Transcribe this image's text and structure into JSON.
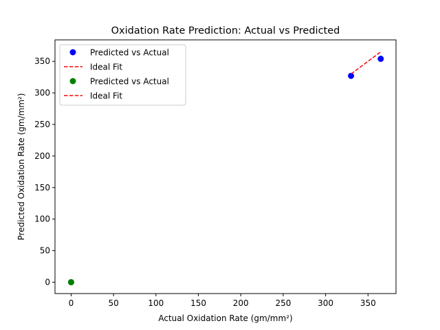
{
  "chart_data": {
    "type": "scatter",
    "title": "Oxidation Rate Prediction: Actual vs Predicted",
    "xlabel": "Actual Oxidation Rate (gm/mm²)",
    "ylabel": "Predicted Oxidation Rate (gm/mm²)",
    "xlim": [
      -19,
      383
    ],
    "ylim": [
      -18,
      384
    ],
    "xticks": [
      0,
      50,
      100,
      150,
      200,
      250,
      300,
      350
    ],
    "yticks": [
      0,
      50,
      100,
      150,
      200,
      250,
      300,
      350
    ],
    "grid": false,
    "legend_position": "top-left",
    "series": [
      {
        "name": "Predicted vs Actual",
        "kind": "scatter",
        "color": "#0000ff",
        "points": [
          [
            330,
            327
          ],
          [
            365,
            354
          ]
        ]
      },
      {
        "name": "Ideal Fit",
        "kind": "dashed-line",
        "color": "#ff0000",
        "points": [
          [
            330,
            330
          ],
          [
            365,
            365
          ]
        ]
      },
      {
        "name": "Predicted vs Actual",
        "kind": "scatter",
        "color": "#008000",
        "points": [
          [
            0,
            0
          ],
          [
            0,
            0
          ]
        ]
      },
      {
        "name": "Ideal Fit",
        "kind": "dashed-line",
        "color": "#ff0000",
        "points": [
          [
            0,
            0
          ],
          [
            0,
            0
          ]
        ]
      }
    ]
  }
}
